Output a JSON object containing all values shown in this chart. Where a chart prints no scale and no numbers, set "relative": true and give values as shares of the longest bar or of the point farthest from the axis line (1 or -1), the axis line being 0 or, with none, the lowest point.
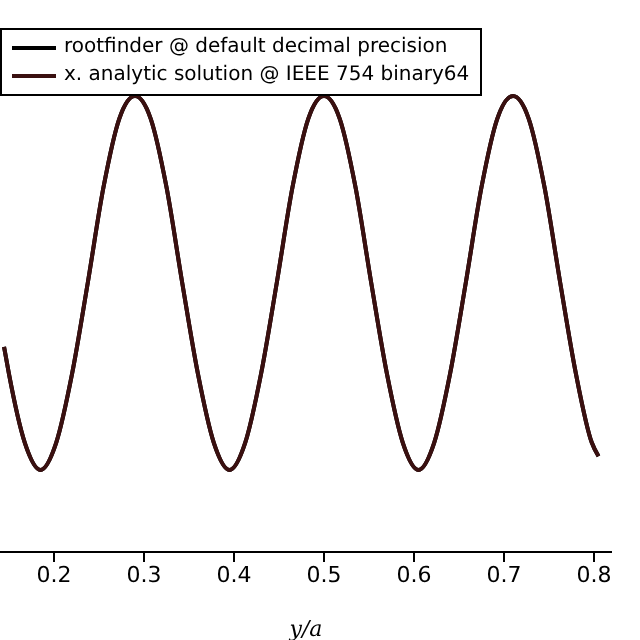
{
  "chart_data": {
    "type": "line",
    "relative": true,
    "xlabel": "y/a",
    "xlim": [
      0.14,
      0.82
    ],
    "xticks": [
      0.2,
      0.3,
      0.4,
      0.5,
      0.6,
      0.7,
      0.8
    ],
    "legend": "top left",
    "grid": false,
    "marker": "none",
    "line_style": "solid",
    "x": [
      0.1445,
      0.15,
      0.1675,
      0.185,
      0.2025,
      0.22,
      0.2375,
      0.255,
      0.2725,
      0.29,
      0.3075,
      0.325,
      0.3425,
      0.36,
      0.3775,
      0.395,
      0.4125,
      0.43,
      0.4475,
      0.465,
      0.4825,
      0.5,
      0.5175,
      0.535,
      0.5525,
      0.57,
      0.5875,
      0.605,
      0.6225,
      0.64,
      0.6575,
      0.675,
      0.6925,
      0.71,
      0.7275,
      0.745,
      0.7625,
      0.78,
      0.7975,
      0.805
    ],
    "series": [
      {
        "name": "rootfinder @ default decimal precision",
        "color": "#000000",
        "values": [
          0.45,
          0.39,
          0.24,
          0.18,
          0.24,
          0.39,
          0.59,
          0.8,
          0.95,
          1,
          0.95,
          0.8,
          0.59,
          0.39,
          0.24,
          0.18,
          0.24,
          0.39,
          0.59,
          0.8,
          0.95,
          1,
          0.95,
          0.8,
          0.59,
          0.39,
          0.24,
          0.18,
          0.24,
          0.39,
          0.59,
          0.8,
          0.95,
          1,
          0.95,
          0.8,
          0.59,
          0.39,
          0.24,
          0.21
        ]
      },
      {
        "name": "x. analytic solution @ IEEE 754 binary64",
        "color": "#3a1010",
        "values": [
          0.45,
          0.39,
          0.24,
          0.18,
          0.24,
          0.39,
          0.59,
          0.8,
          0.95,
          1,
          0.95,
          0.8,
          0.59,
          0.39,
          0.24,
          0.18,
          0.24,
          0.39,
          0.59,
          0.8,
          0.95,
          1,
          0.95,
          0.8,
          0.59,
          0.39,
          0.24,
          0.18,
          0.24,
          0.39,
          0.59,
          0.8,
          0.95,
          1,
          0.95,
          0.8,
          0.59,
          0.39,
          0.24,
          0.21
        ]
      }
    ]
  }
}
